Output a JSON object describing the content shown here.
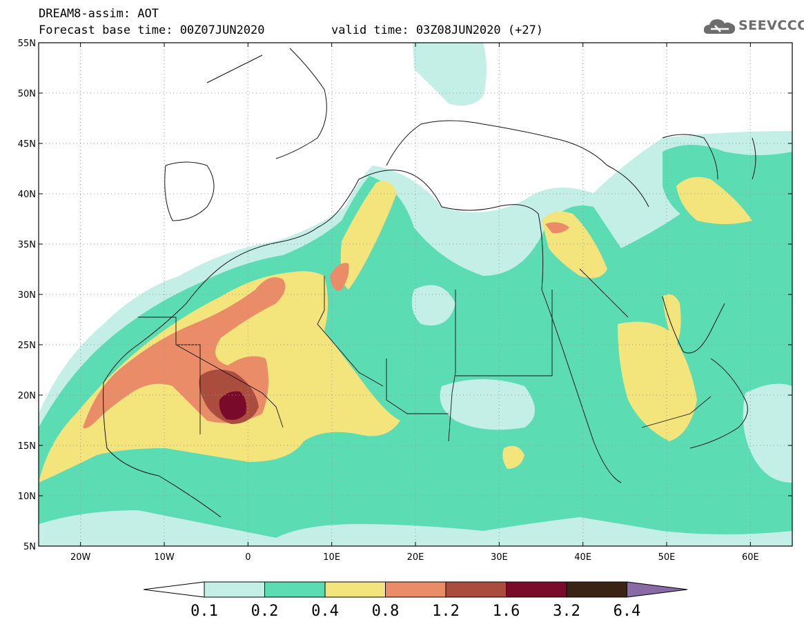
{
  "header": {
    "title_line1": "DREAM8-assim: AOT",
    "title_line2": "Forecast base time: 00Z07JUN2020",
    "valid_time": "valid time: 03Z08JUN2020 (+27)"
  },
  "logo": {
    "text": "SEEVCCC",
    "icon": "cloud-icon"
  },
  "map": {
    "lon_range": [
      -25,
      65
    ],
    "lat_range": [
      5,
      55
    ],
    "lat_ticks": [
      {
        "value": 55,
        "label": "55N"
      },
      {
        "value": 50,
        "label": "50N"
      },
      {
        "value": 45,
        "label": "45N"
      },
      {
        "value": 40,
        "label": "40N"
      },
      {
        "value": 35,
        "label": "35N"
      },
      {
        "value": 30,
        "label": "30N"
      },
      {
        "value": 25,
        "label": "25N"
      },
      {
        "value": 20,
        "label": "20N"
      },
      {
        "value": 15,
        "label": "15N"
      },
      {
        "value": 10,
        "label": "10N"
      },
      {
        "value": 5,
        "label": "5N"
      }
    ],
    "lon_ticks": [
      {
        "value": -20,
        "label": "20W"
      },
      {
        "value": -10,
        "label": "10W"
      },
      {
        "value": 0,
        "label": "0"
      },
      {
        "value": 10,
        "label": "10E"
      },
      {
        "value": 20,
        "label": "20E"
      },
      {
        "value": 30,
        "label": "30E"
      },
      {
        "value": 40,
        "label": "40E"
      },
      {
        "value": 50,
        "label": "50E"
      },
      {
        "value": 60,
        "label": "60E"
      }
    ],
    "grid": true
  },
  "colorbar": {
    "labels": [
      "0.1",
      "0.2",
      "0.4",
      "0.8",
      "1.2",
      "1.6",
      "3.2",
      "6.4"
    ],
    "colors": [
      "#c4efe6",
      "#5cdcb2",
      "#f3e47b",
      "#e98c67",
      "#ab4d3e",
      "#7a0a2a",
      "#3b2314"
    ],
    "over_color": "#8a6aa6"
  },
  "dust_levels": [
    {
      "level": "0.1-0.2",
      "color": "#c4efe6"
    },
    {
      "level": "0.2-0.4",
      "color": "#5cdcb2"
    },
    {
      "level": "0.4-0.8",
      "color": "#f3e47b"
    },
    {
      "level": "0.8-1.2",
      "color": "#e98c67"
    },
    {
      "level": "1.2-1.6",
      "color": "#ab4d3e"
    },
    {
      "level": "1.6-3.2",
      "color": "#7a0a2a"
    }
  ]
}
